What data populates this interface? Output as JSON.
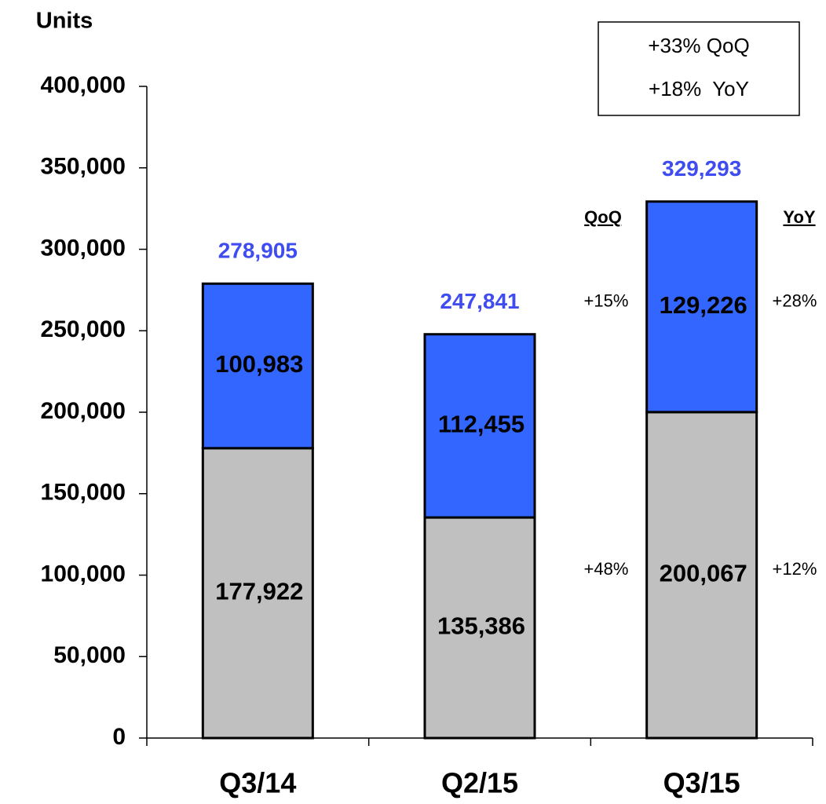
{
  "chart_data": {
    "type": "stacked_bar",
    "y_label": "Units",
    "categories": [
      "Q3/14",
      "Q2/15",
      "Q3/15"
    ],
    "series": [
      {
        "color": "#c0c0c0",
        "values": [
          177922,
          135386,
          200067
        ],
        "value_labels": [
          "177,922",
          "135,386",
          "200,067"
        ],
        "qoq": "+48%",
        "yoy": "+12%"
      },
      {
        "color": "#3366ff",
        "values": [
          100983,
          112455,
          129226
        ],
        "value_labels": [
          "100,983",
          "112,455",
          "129,226"
        ],
        "qoq": "+15%",
        "yoy": "+28%"
      }
    ],
    "totals": [
      278905,
      247841,
      329293
    ],
    "total_labels": [
      "278,905",
      "247,841",
      "329,293"
    ],
    "total_color": "#3f4cf0",
    "qoq_header": "QoQ",
    "yoy_header": "YoY",
    "summary_box": [
      "+33% QoQ",
      "+18%  YoY"
    ],
    "ylim": [
      0,
      400000
    ],
    "yticks": [
      0,
      {
        "value": 50000,
        "label": "50,000"
      },
      {
        "value": 100000,
        "label": "100,000"
      },
      {
        "value": 150000,
        "label": "150,000"
      },
      {
        "value": 200000,
        "label": "200,000"
      },
      {
        "value": 250000,
        "label": "250,000"
      },
      {
        "value": 300000,
        "label": "300,000"
      },
      {
        "value": 350000,
        "label": "350,000"
      },
      {
        "value": 400000,
        "label": "400,000"
      }
    ]
  }
}
